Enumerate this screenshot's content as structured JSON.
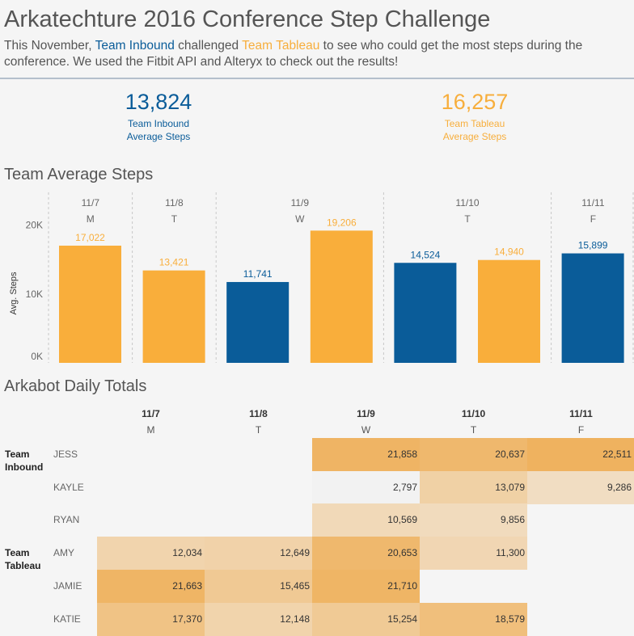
{
  "header": {
    "title": "Arkatechture 2016 Conference Step Challenge",
    "subtitle_prefix": "This November, ",
    "team_inbound": "Team Inbound",
    "subtitle_mid": " challenged ",
    "team_tableau": "Team Tableau",
    "subtitle_suffix": " to see who could get the most steps during the conference. We used the Fitbit API and Alteryx to check out the results!"
  },
  "kpis": [
    {
      "value": "13,824",
      "label_line1": "Team Inbound",
      "label_line2": "Average Steps",
      "color": "#0a5c99"
    },
    {
      "value": "16,257",
      "label_line1": "Team Tableau",
      "label_line2": "Average Steps",
      "color": "#f7ae3c"
    }
  ],
  "colors": {
    "inbound": "#0a5c99",
    "tableau": "#f9ae3b"
  },
  "chart_data": {
    "type": "bar",
    "title": "Team Average Steps",
    "ylabel": "Avg. Steps",
    "ylim": [
      0,
      25000
    ],
    "yticks": [
      "0K",
      "10K",
      "20K"
    ],
    "ytick_values": [
      0,
      10000,
      20000
    ],
    "groups": [
      {
        "date": "11/7",
        "day": "M"
      },
      {
        "date": "11/8",
        "day": "T"
      },
      {
        "date": "11/9",
        "day": "W"
      },
      {
        "date": "11/10",
        "day": "T"
      },
      {
        "date": "11/11",
        "day": "F"
      }
    ],
    "bars": [
      {
        "group": "11/7",
        "team": "tableau",
        "value": 17022,
        "label": "17,022"
      },
      {
        "group": "11/8",
        "team": "tableau",
        "value": 13421,
        "label": "13,421"
      },
      {
        "group": "11/9",
        "team": "inbound",
        "value": 11741,
        "label": "11,741"
      },
      {
        "group": "11/9",
        "team": "tableau",
        "value": 19206,
        "label": "19,206"
      },
      {
        "group": "11/10",
        "team": "inbound",
        "value": 14524,
        "label": "14,524"
      },
      {
        "group": "11/10",
        "team": "tableau",
        "value": 14940,
        "label": "14,940"
      },
      {
        "group": "11/11",
        "team": "inbound",
        "value": 15899,
        "label": "15,899"
      }
    ]
  },
  "daily_totals": {
    "title": "Arkabot Daily Totals",
    "columns": [
      {
        "date": "11/7",
        "day": "M"
      },
      {
        "date": "11/8",
        "day": "T"
      },
      {
        "date": "11/9",
        "day": "W"
      },
      {
        "date": "11/10",
        "day": "T"
      },
      {
        "date": "11/11",
        "day": "F"
      }
    ],
    "teams": [
      {
        "name_line1": "Team",
        "name_line2": "Inbound",
        "members": [
          {
            "name": "JESS",
            "values": [
              null,
              null,
              21858,
              20637,
              22511
            ],
            "labels": [
              "",
              "",
              "21,858",
              "20,637",
              "22,511"
            ]
          },
          {
            "name": "KAYLE",
            "values": [
              null,
              null,
              2797,
              13079,
              9286
            ],
            "labels": [
              "",
              "",
              "2,797",
              "13,079",
              "9,286"
            ]
          },
          {
            "name": "RYAN",
            "values": [
              null,
              null,
              10569,
              9856,
              null
            ],
            "labels": [
              "",
              "",
              "10,569",
              "9,856",
              ""
            ]
          }
        ]
      },
      {
        "name_line1": "Team",
        "name_line2": "Tableau",
        "members": [
          {
            "name": "AMY",
            "values": [
              12034,
              12649,
              20653,
              11300,
              null
            ],
            "labels": [
              "12,034",
              "12,649",
              "20,653",
              "11,300",
              ""
            ]
          },
          {
            "name": "JAMIE",
            "values": [
              21663,
              15465,
              21710,
              null,
              null
            ],
            "labels": [
              "21,663",
              "15,465",
              "21,710",
              "",
              ""
            ]
          },
          {
            "name": "KATIE",
            "values": [
              17370,
              12148,
              15254,
              18579,
              null
            ],
            "labels": [
              "17,370",
              "12,148",
              "15,254",
              "18,579",
              ""
            ]
          }
        ]
      }
    ]
  }
}
